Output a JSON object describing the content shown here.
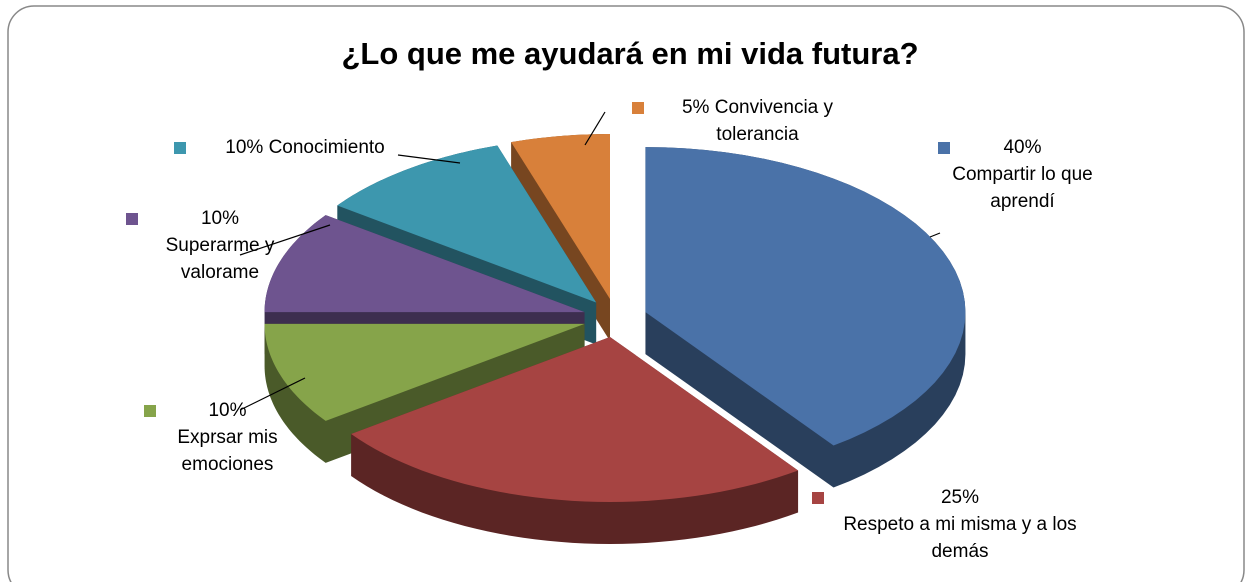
{
  "chart_data": {
    "type": "pie",
    "title": "¿Lo que me ayudará en mi vida futura?",
    "categories": [
      "Compartir lo que aprendí",
      "Respeto a mi misma y a los demás",
      "Exprsar mis emociones",
      "Superarme y valorame",
      "Conocimiento",
      "Convivencia y tolerancia"
    ],
    "values": [
      40,
      25,
      10,
      10,
      10,
      5
    ],
    "value_labels": [
      "40%",
      "25%",
      "10%",
      "10%",
      "10%",
      "5%"
    ],
    "colors": [
      "#4a72a8",
      "#a64442",
      "#86a44a",
      "#6e548f",
      "#3d97ae",
      "#d8803a"
    ]
  }
}
